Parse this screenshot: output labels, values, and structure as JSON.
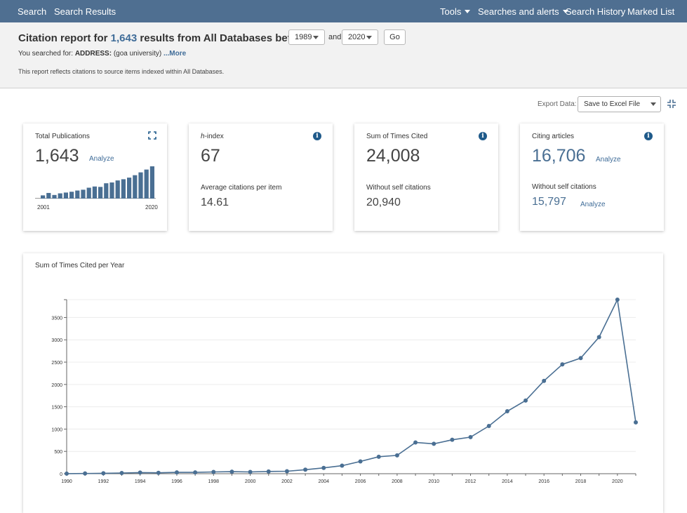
{
  "nav": {
    "search": "Search",
    "search_results": "Search Results",
    "tools": "Tools",
    "searches_alerts": "Searches and alerts",
    "search_history": "Search History",
    "marked_list": "Marked List"
  },
  "header": {
    "title_prefix": "Citation report for",
    "result_count": "1,643",
    "title_suffix": "results from All Databases between",
    "year_from": "1989",
    "and_label": "and",
    "year_to": "2020",
    "go_label": "Go",
    "searched_prefix": "You searched for:",
    "searched_field": "ADDRESS:",
    "searched_query": "(goa university)",
    "more_label": "...More",
    "note": "This report reflects citations to source items indexed within All Databases."
  },
  "export": {
    "label": "Export Data:",
    "selected": "Save to Excel File"
  },
  "cards": {
    "publications": {
      "label": "Total Publications",
      "value": "1,643",
      "analyze": "Analyze",
      "spark_start": "2001",
      "spark_end": "2020",
      "spark_values": [
        8,
        14,
        9,
        13,
        15,
        17,
        20,
        22,
        27,
        30,
        29,
        38,
        40,
        45,
        48,
        52,
        58,
        65,
        72,
        80
      ]
    },
    "hindex": {
      "label_italic": "h",
      "label_rest": "-index",
      "value": "67",
      "sub_label": "Average citations per item",
      "sub_value": "14.61"
    },
    "times_cited": {
      "label": "Sum of Times Cited",
      "value": "24,008",
      "sub_label": "Without self citations",
      "sub_value": "20,940"
    },
    "citing": {
      "label": "Citing articles",
      "value": "16,706",
      "analyze": "Analyze",
      "sub_label": "Without self citations",
      "sub_value": "15,797",
      "sub_analyze": "Analyze"
    }
  },
  "colors": {
    "nav": "#4f6f91",
    "accent": "#3f6c98",
    "series": "#4a6f93"
  },
  "chart_data": {
    "type": "line",
    "title": "Sum of Times Cited per Year",
    "xlabel": "",
    "ylabel": "",
    "x": [
      1990,
      1991,
      1992,
      1993,
      1994,
      1995,
      1996,
      1997,
      1998,
      1999,
      2000,
      2001,
      2002,
      2003,
      2004,
      2005,
      2006,
      2007,
      2008,
      2009,
      2010,
      2011,
      2012,
      2013,
      2014,
      2015,
      2016,
      2017,
      2018,
      2019,
      2020,
      2021
    ],
    "values": [
      2,
      5,
      10,
      15,
      25,
      20,
      30,
      30,
      40,
      45,
      40,
      50,
      55,
      90,
      130,
      180,
      275,
      380,
      410,
      700,
      670,
      760,
      820,
      1070,
      1400,
      1640,
      2080,
      2450,
      2590,
      3060,
      3900,
      1150
    ],
    "x_ticks": [
      1990,
      1992,
      1994,
      1996,
      1998,
      2000,
      2002,
      2004,
      2006,
      2008,
      2010,
      2012,
      2014,
      2016,
      2018,
      2020
    ],
    "y_ticks": [
      0,
      500,
      1000,
      1500,
      2000,
      2500,
      3000,
      3500
    ],
    "xlim": [
      1990,
      2021
    ],
    "ylim": [
      0,
      3900
    ],
    "grid": true,
    "legend": "none"
  }
}
